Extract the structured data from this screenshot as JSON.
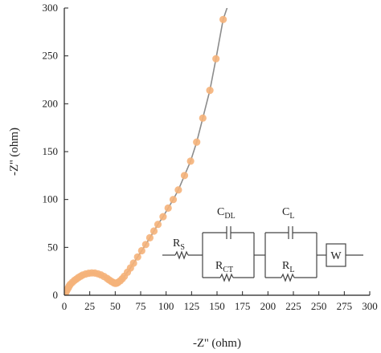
{
  "chart_data": {
    "type": "scatter",
    "xlabel": "-Z'' (ohm)",
    "ylabel": "-Z'' (ohm)",
    "xlim": [
      0,
      300
    ],
    "ylim": [
      0,
      300
    ],
    "xticks": [
      0,
      25,
      50,
      75,
      100,
      125,
      150,
      175,
      200,
      225,
      250,
      275,
      300
    ],
    "yticks": [
      0,
      50,
      100,
      150,
      200,
      250,
      300
    ],
    "grid": false,
    "legend": "none",
    "marker_color": "#f5b27a",
    "fit_line_color": "#8c8c8c",
    "series": [
      {
        "x": [
          1,
          2,
          3,
          4,
          5,
          6,
          8,
          10,
          12,
          14,
          16,
          18,
          21,
          24,
          27,
          30,
          33,
          36,
          39,
          42,
          44,
          46,
          48,
          49,
          50,
          51,
          52,
          53,
          55,
          57,
          59,
          62,
          65,
          68,
          72,
          76,
          80,
          84,
          88,
          92,
          97,
          102,
          107,
          112,
          118,
          124,
          130,
          136,
          143,
          149,
          156,
          163
        ],
        "y": [
          2,
          4,
          6,
          8,
          10,
          11.5,
          13.5,
          15.5,
          17,
          18.5,
          19.8,
          21,
          22.2,
          23,
          23.3,
          23.1,
          22.4,
          21.2,
          19.6,
          17.6,
          16,
          14.6,
          13.4,
          12.8,
          12.5,
          12.6,
          13,
          13.6,
          15.2,
          17.3,
          19.8,
          24,
          28.5,
          33.5,
          40,
          46.5,
          53,
          60,
          67,
          74,
          82,
          91,
          100,
          110,
          125,
          140,
          160,
          185,
          214,
          247,
          288,
          310
        ]
      }
    ],
    "circuit": {
      "labels": [
        {
          "main": "R",
          "sub": "S"
        },
        {
          "main": "C",
          "sub": "DL"
        },
        {
          "main": "R",
          "sub": "CT"
        },
        {
          "main": "C",
          "sub": "L"
        },
        {
          "main": "R",
          "sub": "L"
        },
        {
          "main": "W",
          "sub": ""
        }
      ]
    }
  }
}
